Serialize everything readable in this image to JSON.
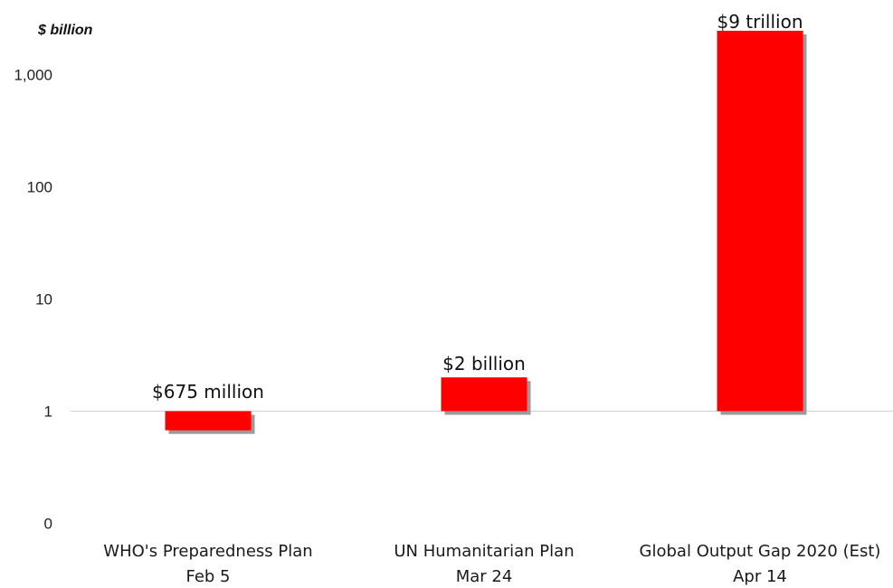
{
  "chart_data": {
    "type": "bar",
    "ylabel": "$ billion",
    "yscale": "log",
    "baseline": 1,
    "yticks": [
      {
        "value": 0.1,
        "label": "0"
      },
      {
        "value": 1,
        "label": "1"
      },
      {
        "value": 10,
        "label": "10"
      },
      {
        "value": 100,
        "label": "100"
      },
      {
        "value": 1000,
        "label": "1,000"
      }
    ],
    "categories": [
      {
        "line1": "WHO's Preparedness Plan",
        "line2": "Feb 5"
      },
      {
        "line1": "UN Humanitarian Plan",
        "line2": "Mar 24"
      },
      {
        "line1": "Global Output Gap 2020 (Est)",
        "line2": "Apr 14"
      }
    ],
    "values": [
      0.675,
      2,
      9000
    ],
    "data_labels": [
      "$675 million",
      "$2 billion",
      "$9 trillion"
    ],
    "colors": {
      "bar": "#ff0000",
      "shadow": "#9a9a9a",
      "baseline": "#d0d0d0"
    }
  }
}
